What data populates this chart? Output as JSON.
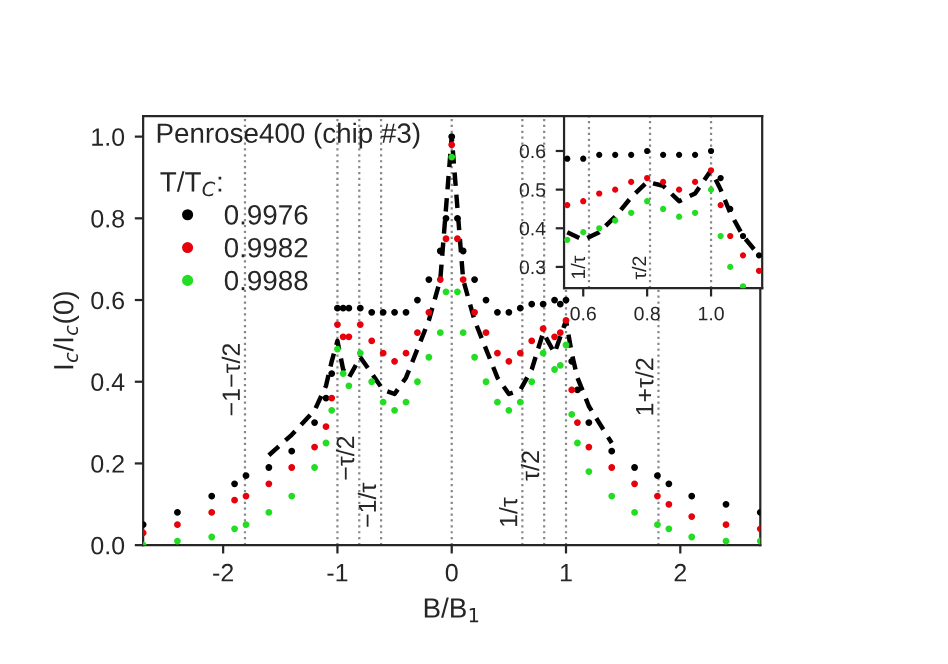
{
  "chart_data": [
    {
      "type": "scatter",
      "xlabel": "B/B$_{1}$",
      "ylabel": "I$_{c}$/I$_{c}$(0)",
      "legend_title": "T/T$_{C}$:",
      "legend": "top left",
      "marker": "circle",
      "annotations": [
        "Penrose400 (chip #3)"
      ],
      "x": [
        -2.7,
        -2.4,
        -2.1,
        -1.9,
        -1.8,
        -1.6,
        -1.4,
        -1.2,
        -1.1,
        -1.05,
        -1.0,
        -0.95,
        -0.9,
        -0.8,
        -0.7,
        -0.6,
        -0.5,
        -0.4,
        -0.3,
        -0.2,
        -0.1,
        -0.05,
        0,
        0.05,
        0.1,
        0.2,
        0.3,
        0.4,
        0.5,
        0.6,
        0.7,
        0.8,
        0.9,
        0.95,
        1.0,
        1.05,
        1.1,
        1.2,
        1.4,
        1.6,
        1.8,
        1.9,
        2.1,
        2.4,
        2.7
      ],
      "xlim": [
        -2.7,
        2.7
      ],
      "ylim": [
        0,
        1.05
      ],
      "xticks": [
        -2,
        -1,
        0,
        1,
        2
      ],
      "yticks": [
        {
          "value": 0,
          "label": "0.0"
        },
        {
          "value": 0.2,
          "label": "0.2"
        },
        {
          "value": 0.4,
          "label": "0.4"
        },
        {
          "value": 0.6,
          "label": "0.6"
        },
        {
          "value": 0.8,
          "label": "0.8"
        },
        {
          "value": 1.0,
          "label": "1.0"
        }
      ],
      "series": [
        {
          "name": "0.9976",
          "color": "#000000",
          "values": [
            0.05,
            0.08,
            0.12,
            0.15,
            0.17,
            0.19,
            0.23,
            0.3,
            0.36,
            0.42,
            0.58,
            0.58,
            0.58,
            0.58,
            0.57,
            0.57,
            0.57,
            0.57,
            0.6,
            0.65,
            0.72,
            0.8,
            1.0,
            0.8,
            0.72,
            0.65,
            0.6,
            0.57,
            0.57,
            0.58,
            0.59,
            0.59,
            0.6,
            0.59,
            0.6,
            0.45,
            0.38,
            0.3,
            0.23,
            0.19,
            0.17,
            0.15,
            0.12,
            0.1,
            0.08
          ]
        },
        {
          "name": "0.9982",
          "color": "#e8000b",
          "values": [
            0.03,
            0.05,
            0.08,
            0.11,
            0.12,
            0.15,
            0.19,
            0.24,
            0.29,
            0.36,
            0.54,
            0.51,
            0.51,
            0.54,
            0.5,
            0.47,
            0.45,
            0.47,
            0.52,
            0.57,
            0.65,
            0.75,
            0.98,
            0.75,
            0.65,
            0.57,
            0.52,
            0.47,
            0.45,
            0.47,
            0.5,
            0.53,
            0.51,
            0.52,
            0.55,
            0.38,
            0.3,
            0.24,
            0.19,
            0.15,
            0.12,
            0.1,
            0.07,
            0.05,
            0.04
          ]
        },
        {
          "name": "0.9988",
          "color": "#22dd22",
          "values": [
            0.0,
            0.01,
            0.02,
            0.04,
            0.05,
            0.08,
            0.12,
            0.19,
            0.25,
            0.33,
            0.48,
            0.42,
            0.39,
            0.47,
            0.4,
            0.35,
            0.33,
            0.35,
            0.4,
            0.46,
            0.52,
            0.62,
            0.95,
            0.62,
            0.52,
            0.46,
            0.4,
            0.35,
            0.33,
            0.35,
            0.4,
            0.47,
            0.43,
            0.44,
            0.49,
            0.32,
            0.25,
            0.18,
            0.12,
            0.08,
            0.05,
            0.04,
            0.02,
            0.01,
            0.01
          ]
        },
        {
          "type": "line",
          "line_style": "dashed",
          "marker": "none",
          "color": "#000000",
          "x": [
            -1.6,
            -1.4,
            -1.2,
            -1.1,
            -1.05,
            -1.0,
            -0.95,
            -0.9,
            -0.8,
            -0.7,
            -0.6,
            -0.5,
            -0.4,
            -0.3,
            -0.2,
            -0.1,
            0,
            0.1,
            0.2,
            0.3,
            0.4,
            0.5,
            0.6,
            0.7,
            0.8,
            0.9,
            1.0,
            1.05,
            1.1,
            1.2,
            1.4
          ],
          "values": [
            0.22,
            0.27,
            0.33,
            0.39,
            0.45,
            0.5,
            0.43,
            0.41,
            0.46,
            0.42,
            0.38,
            0.37,
            0.41,
            0.48,
            0.55,
            0.65,
            1.0,
            0.65,
            0.55,
            0.48,
            0.41,
            0.37,
            0.38,
            0.43,
            0.52,
            0.47,
            0.55,
            0.47,
            0.41,
            0.34,
            0.25
          ]
        }
      ],
      "ref_lines": [
        {
          "axis": "x",
          "value": -1.809,
          "label": "−1−τ/2"
        },
        {
          "axis": "x",
          "value": -1.0
        },
        {
          "axis": "x",
          "value": -0.809,
          "label": "−τ/2"
        },
        {
          "axis": "x",
          "value": -0.618,
          "label": "−1/τ"
        },
        {
          "axis": "x",
          "value": 0
        },
        {
          "axis": "x",
          "value": 0.618,
          "label": "1/τ"
        },
        {
          "axis": "x",
          "value": 0.809,
          "label": "τ/2"
        },
        {
          "axis": "x",
          "value": 1.0
        },
        {
          "axis": "x",
          "value": 1.809,
          "label": "1+τ/2"
        }
      ]
    },
    {
      "type": "scatter",
      "marker": "circle",
      "x": [
        0.55,
        0.6,
        0.65,
        0.7,
        0.75,
        0.8,
        0.85,
        0.9,
        0.95,
        1.0,
        1.03,
        1.06,
        1.1,
        1.15
      ],
      "xlim": [
        0.54,
        1.16
      ],
      "ylim": [
        0.245,
        0.69
      ],
      "xticks": [
        0.6,
        0.8,
        {
          "value": 1.0,
          "label": "1.0"
        }
      ],
      "yticks": [
        0.3,
        0.4,
        0.5,
        0.6
      ],
      "series": [
        {
          "color": "#000000",
          "values": [
            0.58,
            0.58,
            0.59,
            0.59,
            0.59,
            0.6,
            0.59,
            0.59,
            0.59,
            0.6,
            0.53,
            0.45,
            0.38,
            0.33
          ]
        },
        {
          "color": "#e8000b",
          "values": [
            0.46,
            0.47,
            0.49,
            0.5,
            0.52,
            0.53,
            0.52,
            0.5,
            0.52,
            0.55,
            0.46,
            0.38,
            0.33,
            0.29
          ]
        },
        {
          "color": "#22dd22",
          "values": [
            0.37,
            0.39,
            0.4,
            0.42,
            0.44,
            0.47,
            0.45,
            0.43,
            0.44,
            0.5,
            0.38,
            0.3,
            0.25,
            null
          ]
        },
        {
          "type": "line",
          "line_style": "dashed",
          "marker": "none",
          "color": "#000000",
          "values": [
            0.39,
            0.37,
            0.39,
            0.43,
            0.48,
            0.52,
            0.51,
            0.47,
            0.49,
            0.55,
            0.5,
            0.44,
            0.38,
            0.33
          ]
        }
      ],
      "ref_lines": [
        {
          "axis": "x",
          "value": 0.618,
          "label": "1/τ"
        },
        {
          "axis": "x",
          "value": 0.809,
          "label": "τ/2"
        },
        {
          "axis": "x",
          "value": 1.0
        }
      ]
    }
  ]
}
